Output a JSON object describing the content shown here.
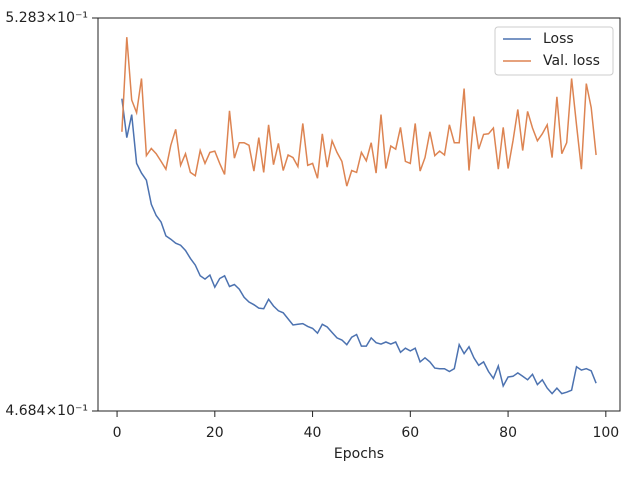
{
  "chart_data": {
    "type": "line",
    "xlabel": "Epochs",
    "x": [
      1,
      2,
      3,
      4,
      5,
      6,
      7,
      8,
      9,
      10,
      11,
      12,
      13,
      14,
      15,
      16,
      17,
      18,
      19,
      20,
      21,
      22,
      23,
      24,
      25,
      26,
      27,
      28,
      29,
      30,
      31,
      32,
      33,
      34,
      35,
      36,
      37,
      38,
      39,
      40,
      41,
      42,
      43,
      44,
      45,
      46,
      47,
      48,
      49,
      50,
      51,
      52,
      53,
      54,
      55,
      56,
      57,
      58,
      59,
      60,
      61,
      62,
      63,
      64,
      65,
      66,
      67,
      68,
      69,
      70,
      71,
      72,
      73,
      74,
      75,
      76,
      77,
      78,
      79,
      80,
      81,
      82,
      83,
      84,
      85,
      86,
      87,
      88,
      89,
      90,
      91,
      92,
      93,
      94,
      95,
      96,
      97,
      98
    ],
    "series": [
      {
        "name": "Loss",
        "color": "#4c72b0",
        "values": [
          0.5154,
          0.5093,
          0.5129,
          0.5053,
          0.5038,
          0.5027,
          0.499,
          0.4973,
          0.4963,
          0.4942,
          0.4937,
          0.4931,
          0.4928,
          0.492,
          0.4908,
          0.4898,
          0.4882,
          0.4877,
          0.4883,
          0.4865,
          0.4878,
          0.4882,
          0.4866,
          0.4869,
          0.4862,
          0.485,
          0.4843,
          0.4839,
          0.4834,
          0.4833,
          0.4847,
          0.4837,
          0.483,
          0.4827,
          0.4818,
          0.4809,
          0.481,
          0.4811,
          0.4807,
          0.4804,
          0.4797,
          0.481,
          0.4806,
          0.4798,
          0.479,
          0.4787,
          0.478,
          0.4791,
          0.4795,
          0.4778,
          0.4778,
          0.479,
          0.4783,
          0.4781,
          0.4784,
          0.4781,
          0.4784,
          0.4769,
          0.4775,
          0.4771,
          0.4775,
          0.4755,
          0.4761,
          0.4755,
          0.4746,
          0.4745,
          0.4745,
          0.4741,
          0.4745,
          0.478,
          0.4767,
          0.4777,
          0.4761,
          0.475,
          0.4755,
          0.4741,
          0.4731,
          0.4749,
          0.472,
          0.4733,
          0.4734,
          0.4739,
          0.4734,
          0.4729,
          0.4737,
          0.4722,
          0.4729,
          0.4717,
          0.4709,
          0.4717,
          0.4709,
          0.4711,
          0.4714,
          0.4748,
          0.4743,
          0.4745,
          0.4742,
          0.4724
        ]
      },
      {
        "name": "Val. loss",
        "color": "#dd8452",
        "values": [
          0.5102,
          0.5252,
          0.5152,
          0.5132,
          0.5186,
          0.5065,
          0.5076,
          0.5068,
          0.5056,
          0.5044,
          0.5081,
          0.5106,
          0.505,
          0.5068,
          0.5039,
          0.5034,
          0.5073,
          0.5053,
          0.507,
          0.5072,
          0.5053,
          0.5036,
          0.5135,
          0.5061,
          0.5085,
          0.5085,
          0.5081,
          0.5041,
          0.5093,
          0.5039,
          0.5113,
          0.5051,
          0.5084,
          0.5042,
          0.5066,
          0.5062,
          0.5048,
          0.5115,
          0.505,
          0.5053,
          0.503,
          0.5099,
          0.5047,
          0.5088,
          0.507,
          0.5056,
          0.5018,
          0.5042,
          0.5039,
          0.507,
          0.5057,
          0.5085,
          0.5038,
          0.5129,
          0.5045,
          0.508,
          0.5075,
          0.5109,
          0.5056,
          0.5053,
          0.5115,
          0.5041,
          0.5062,
          0.5102,
          0.5065,
          0.5072,
          0.5066,
          0.5113,
          0.5085,
          0.5085,
          0.517,
          0.5042,
          0.5126,
          0.5075,
          0.5098,
          0.5099,
          0.5108,
          0.5044,
          0.5109,
          0.5045,
          0.5088,
          0.5137,
          0.5073,
          0.5134,
          0.5108,
          0.5088,
          0.5099,
          0.5113,
          0.5062,
          0.5157,
          0.5068,
          0.5085,
          0.5186,
          0.5113,
          0.5044,
          0.5178,
          0.514,
          0.5066
        ]
      }
    ],
    "xlim": [
      -3.9,
      102.9
    ],
    "xticks": [
      0,
      20,
      40,
      60,
      80,
      100
    ],
    "ylim": [
      0.4684,
      0.5283
    ],
    "ylog": true,
    "yticks": [
      {
        "value": 0.4684,
        "label": "4.684×10⁻¹"
      },
      {
        "value": 0.5283,
        "label": "5.283×10⁻¹"
      }
    ],
    "grid": false,
    "legend": "upper right"
  }
}
